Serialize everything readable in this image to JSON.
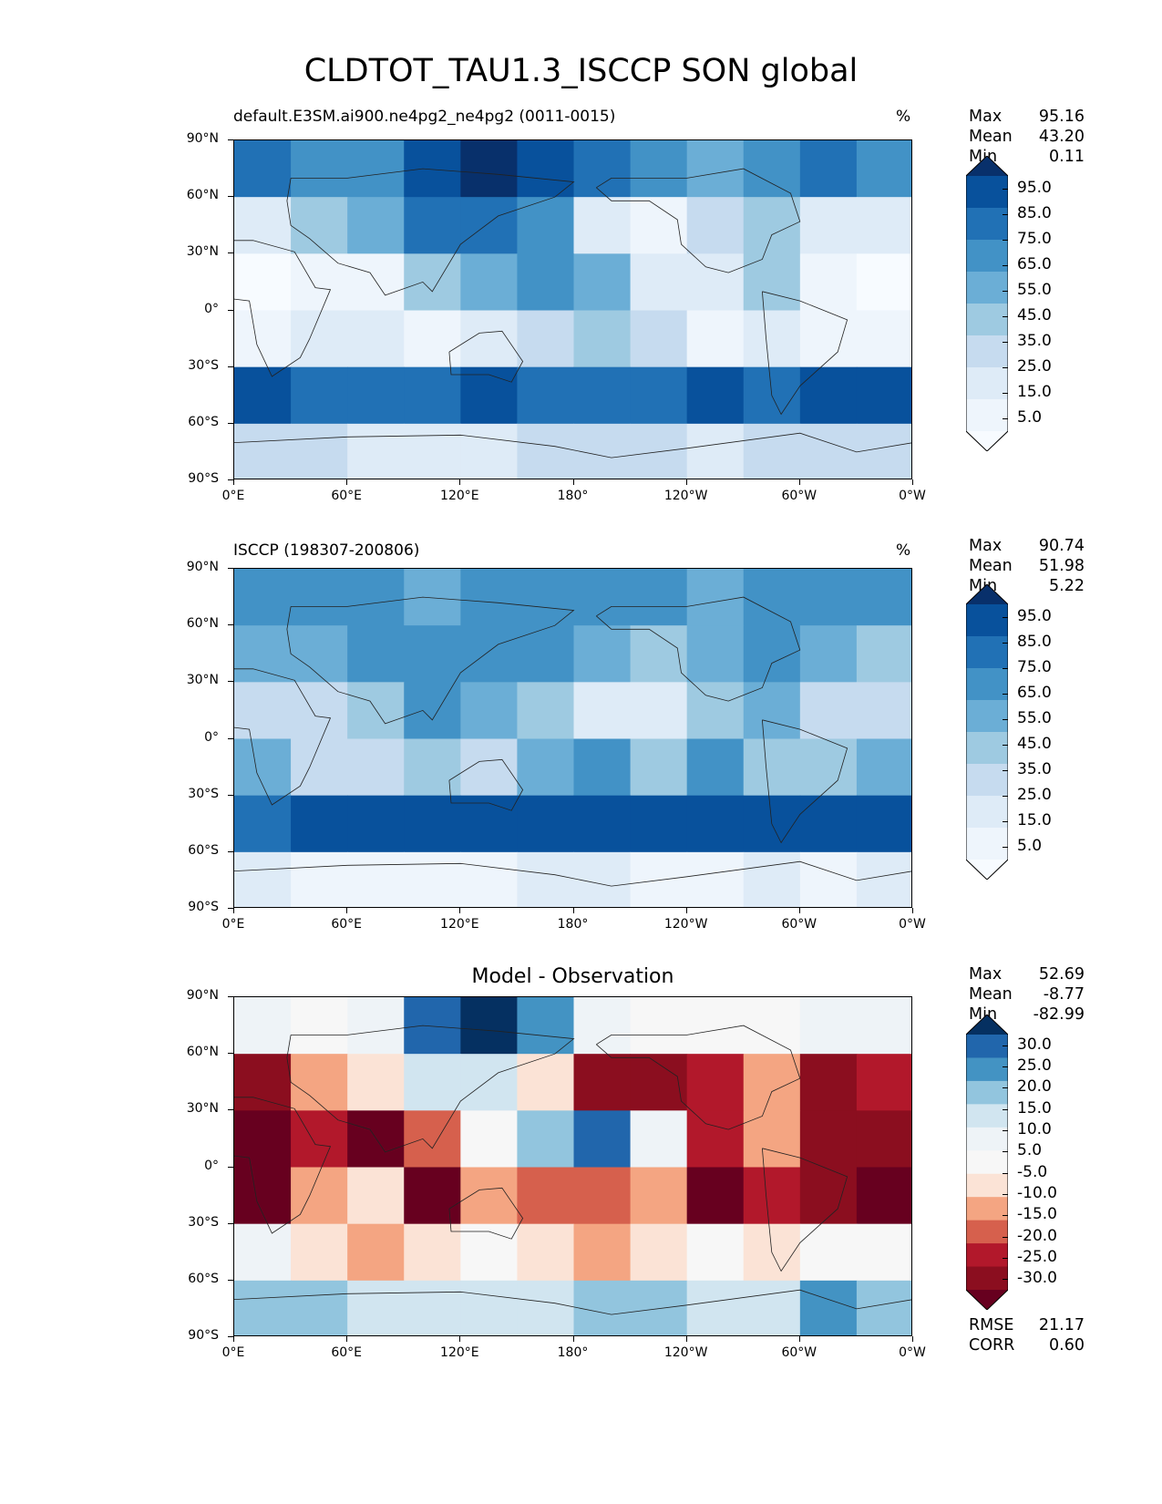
{
  "title": "CLDTOT_TAU1.3_ISCCP SON global",
  "panels": [
    {
      "subtitle": "default.E3SM.ai900.ne4pg2_ne4pg2 (0011-0015)",
      "units": "%",
      "stats": [
        {
          "label": "Max",
          "value": "95.16"
        },
        {
          "label": "Mean",
          "value": "43.20"
        },
        {
          "label": "Min",
          "value": "0.11"
        }
      ]
    },
    {
      "subtitle": "ISCCP (198307-200806)",
      "units": "%",
      "stats": [
        {
          "label": "Max",
          "value": "90.74"
        },
        {
          "label": "Mean",
          "value": "51.98"
        },
        {
          "label": "Min",
          "value": "5.22"
        }
      ]
    },
    {
      "subtitle": "Model - Observation",
      "units": "",
      "stats": [
        {
          "label": "Max",
          "value": "52.69"
        },
        {
          "label": "Mean",
          "value": "-8.77"
        },
        {
          "label": "Min",
          "value": "-82.99"
        }
      ],
      "extra_stats": [
        {
          "label": "RMSE",
          "value": "21.17"
        },
        {
          "label": "CORR",
          "value": "0.60"
        }
      ]
    }
  ],
  "axes": {
    "yticks": [
      "90°N",
      "60°N",
      "30°N",
      "0°",
      "30°S",
      "60°S",
      "90°S"
    ],
    "xticks": [
      "0°E",
      "60°E",
      "120°E",
      "180°",
      "120°W",
      "60°W",
      "0°W"
    ]
  },
  "colorbars": {
    "sequential": {
      "ticks": [
        "95.0",
        "85.0",
        "75.0",
        "65.0",
        "55.0",
        "45.0",
        "35.0",
        "25.0",
        "15.0",
        "5.0"
      ],
      "colors": [
        "#08306b",
        "#08519c",
        "#2171b5",
        "#4292c6",
        "#6baed6",
        "#9ecae1",
        "#c6dbef",
        "#deebf7",
        "#eef5fc",
        "#f7fbff"
      ]
    },
    "diverging": {
      "ticks": [
        "30.0",
        "25.0",
        "20.0",
        "15.0",
        "10.0",
        "5.0",
        "-5.0",
        "-10.0",
        "-15.0",
        "-20.0",
        "-25.0",
        "-30.0"
      ],
      "colors": [
        "#053061",
        "#2166ac",
        "#4393c3",
        "#92c5de",
        "#d1e5f0",
        "#eef3f7",
        "#f7f7f7",
        "#fbe3d6",
        "#f4a582",
        "#d6604d",
        "#b2182b",
        "#8b0e1f",
        "#67001f"
      ]
    }
  },
  "chart_data": [
    {
      "type": "heatmap",
      "title": "default.E3SM.ai900.ne4pg2_ne4pg2 (0011-0015)",
      "units": "%",
      "lat": [
        75,
        45,
        15,
        -15,
        -45,
        -75
      ],
      "lon": [
        15,
        45,
        75,
        105,
        135,
        165,
        195,
        225,
        255,
        285,
        315,
        345
      ],
      "values": [
        [
          70,
          60,
          65,
          80,
          88,
          85,
          70,
          60,
          55,
          60,
          70,
          65
        ],
        [
          30,
          45,
          55,
          70,
          70,
          60,
          30,
          20,
          35,
          50,
          30,
          25
        ],
        [
          10,
          15,
          20,
          45,
          55,
          60,
          55,
          30,
          25,
          45,
          15,
          10
        ],
        [
          20,
          30,
          30,
          20,
          25,
          40,
          45,
          40,
          20,
          30,
          20,
          15
        ],
        [
          80,
          75,
          70,
          75,
          80,
          75,
          70,
          75,
          80,
          75,
          80,
          80
        ],
        [
          40,
          35,
          30,
          30,
          30,
          35,
          40,
          35,
          30,
          35,
          40,
          40
        ]
      ],
      "colorbar_range": [
        5,
        95
      ]
    },
    {
      "type": "heatmap",
      "title": "ISCCP (198307-200806)",
      "units": "%",
      "lat": [
        75,
        45,
        15,
        -15,
        -45,
        -75
      ],
      "lon": [
        15,
        45,
        75,
        105,
        135,
        165,
        195,
        225,
        255,
        285,
        315,
        345
      ],
      "values": [
        [
          65,
          60,
          60,
          55,
          60,
          65,
          65,
          60,
          55,
          60,
          65,
          60
        ],
        [
          55,
          55,
          60,
          60,
          60,
          65,
          55,
          45,
          55,
          60,
          55,
          45
        ],
        [
          40,
          35,
          50,
          60,
          55,
          45,
          30,
          25,
          45,
          55,
          40,
          35
        ],
        [
          55,
          40,
          35,
          50,
          35,
          55,
          60,
          50,
          60,
          50,
          45,
          55
        ],
        [
          75,
          80,
          80,
          80,
          80,
          80,
          80,
          80,
          80,
          80,
          80,
          80
        ],
        [
          25,
          20,
          20,
          20,
          20,
          25,
          25,
          20,
          20,
          25,
          20,
          25
        ]
      ],
      "colorbar_range": [
        5,
        95
      ]
    },
    {
      "type": "heatmap",
      "title": "Model - Observation",
      "lat": [
        75,
        45,
        15,
        -15,
        -45,
        -75
      ],
      "lon": [
        15,
        45,
        75,
        105,
        135,
        165,
        195,
        225,
        255,
        285,
        315,
        345
      ],
      "values": [
        [
          5,
          0,
          5,
          25,
          28,
          20,
          5,
          0,
          0,
          0,
          5,
          5
        ],
        [
          -25,
          -10,
          -5,
          10,
          10,
          -5,
          -25,
          -25,
          -20,
          -10,
          -25,
          -20
        ],
        [
          -30,
          -20,
          -30,
          -15,
          0,
          15,
          25,
          5,
          -20,
          -10,
          -25,
          -25
        ],
        [
          -35,
          -10,
          -5,
          -30,
          -10,
          -15,
          -15,
          -10,
          -40,
          -20,
          -25,
          -40
        ],
        [
          5,
          -5,
          -10,
          -5,
          0,
          -5,
          -10,
          -5,
          0,
          -5,
          0,
          0
        ],
        [
          15,
          15,
          10,
          10,
          10,
          10,
          15,
          15,
          10,
          10,
          20,
          15
        ]
      ],
      "colorbar_range": [
        -30,
        30
      ]
    }
  ]
}
